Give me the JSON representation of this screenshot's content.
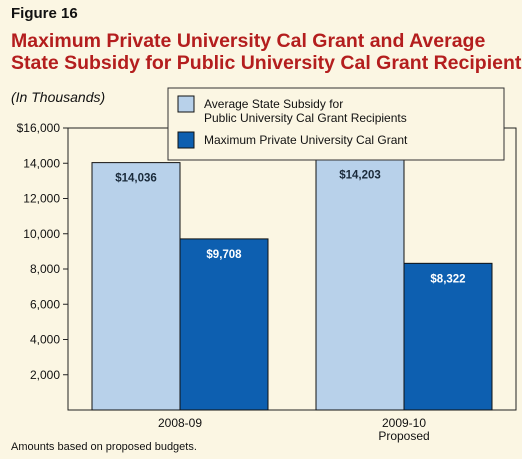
{
  "figure_label": "Figure 16",
  "title_line1": "Maximum Private University Cal Grant and Average",
  "title_line2": "State Subsidy for Public University Cal Grant Recipients",
  "units_note": "(In Thousands)",
  "footnote": "Amounts based on proposed budgets.",
  "colors": {
    "background": "#fbf6e3",
    "title": "#b41e1e",
    "series_subsidy": "#b8d1ea",
    "series_grant": "#0d5fb0"
  },
  "chart_data": {
    "type": "bar",
    "categories": [
      [
        "2008-09"
      ],
      [
        "2009-10",
        "Proposed"
      ]
    ],
    "series": [
      {
        "name": "Average State Subsidy for Public University Cal Grant Recipients",
        "legend_lines": [
          "Average State Subsidy for",
          "Public University Cal Grant Recipients"
        ],
        "values": [
          14036,
          14203
        ],
        "labels": [
          "$14,036",
          "$14,203"
        ],
        "color": "#b8d1ea",
        "label_color": "#1a2a3a"
      },
      {
        "name": "Maximum Private University Cal Grant",
        "legend_lines": [
          "Maximum Private University Cal Grant"
        ],
        "values": [
          9708,
          8322
        ],
        "labels": [
          "$9,708",
          "$8,322"
        ],
        "color": "#0d5fb0",
        "label_color": "#ffffff"
      }
    ],
    "yticks": [
      2000,
      4000,
      6000,
      8000,
      10000,
      12000,
      14000,
      16000
    ],
    "ytick_labels": [
      "2,000",
      "4,000",
      "6,000",
      "8,000",
      "10,000",
      "12,000",
      "14,000",
      "$16,000"
    ],
    "ylim": [
      0,
      16000
    ],
    "legend_position": "top-right",
    "grid": false
  }
}
